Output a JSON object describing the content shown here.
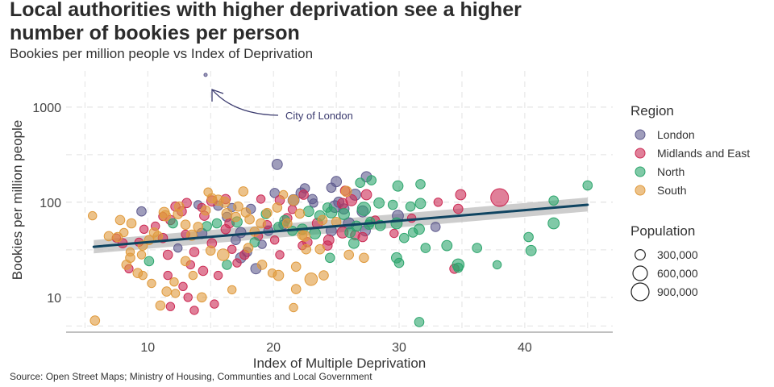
{
  "title": "Local authorities with higher deprivation see a higher number of bookies per person",
  "subtitle": "Bookies per million people vs Index of Deprivation",
  "caption": "Source: Open Street Maps; Ministry of Housing, Communties and Local Government",
  "colors": {
    "London": "#5f5b8e",
    "Midlands and East": "#cc2c55",
    "North": "#2ca56c",
    "South": "#e09a3c",
    "trend": "#0f4461",
    "band": "#bcbcbc",
    "annotation": "#3a3a6e",
    "grid": "#e2e2e2",
    "axis": "#9a9a9a"
  },
  "chart_data": {
    "type": "scatter",
    "xlabel": "Index of Multiple Deprivation",
    "ylabel": "Bookies per million people",
    "xscale": "linear",
    "yscale": "log",
    "xlim": [
      3.5,
      47
    ],
    "ylim": [
      4.3,
      2400
    ],
    "xticks": [
      10,
      20,
      30,
      40
    ],
    "xtick_labels": [
      "10",
      "20",
      "30",
      "40"
    ],
    "yticks": [
      10,
      100,
      1000
    ],
    "ytick_labels": [
      "10",
      "100",
      "1000"
    ],
    "grid": true,
    "legend_position": "right",
    "legend": {
      "color_title": "Region",
      "regions": [
        "London",
        "Midlands and East",
        "North",
        "South"
      ],
      "size_title": "Population",
      "sizes": [
        300000,
        600000,
        900000
      ],
      "size_labels": [
        "300,000",
        "600,000",
        "900,000"
      ]
    },
    "annotation": {
      "text": "City of London",
      "x": 14.6,
      "y": 2180
    },
    "trend": {
      "x": [
        5.7,
        45.0
      ],
      "y": [
        34,
        94
      ],
      "band_low": [
        29,
        80
      ],
      "band_high": [
        40,
        112
      ]
    },
    "series": [
      {
        "name": "London",
        "points": [
          [
            14.6,
            2180,
            9000
          ],
          [
            20.3,
            250,
            300000
          ],
          [
            27.4,
            185,
            300000
          ],
          [
            25.0,
            165,
            300000
          ],
          [
            24.6,
            142,
            250000
          ],
          [
            22.5,
            140,
            250000
          ],
          [
            20.1,
            125,
            250000
          ],
          [
            22.2,
            125,
            300000
          ],
          [
            23.1,
            108,
            250000
          ],
          [
            21.6,
            105,
            350000
          ],
          [
            25.2,
            100,
            300000
          ],
          [
            24.9,
            90,
            400000
          ],
          [
            25.6,
            85,
            300000
          ],
          [
            27.1,
            80,
            350000
          ],
          [
            26.5,
            120,
            350000
          ],
          [
            29.9,
            72,
            350000
          ],
          [
            9.5,
            80,
            250000
          ],
          [
            14.0,
            94,
            200000
          ],
          [
            15.6,
            92,
            250000
          ],
          [
            16.7,
            88,
            200000
          ],
          [
            18.2,
            85,
            250000
          ],
          [
            26.0,
            60,
            350000
          ],
          [
            19.6,
            50,
            250000
          ],
          [
            24.6,
            50,
            300000
          ],
          [
            27.3,
            50,
            300000
          ],
          [
            16.3,
            70,
            250000
          ],
          [
            17.4,
            48,
            300000
          ],
          [
            20.8,
            58,
            250000
          ],
          [
            14.3,
            47,
            300000
          ],
          [
            17.0,
            40,
            250000
          ],
          [
            19.1,
            36,
            200000
          ],
          [
            12.4,
            33,
            200000
          ],
          [
            17.9,
            30,
            250000
          ],
          [
            17.4,
            26,
            300000
          ],
          [
            18.6,
            20,
            300000
          ],
          [
            32.9,
            55,
            250000
          ],
          [
            23.2,
            98,
            200000
          ]
        ]
      },
      {
        "name": "Midlands and East",
        "points": [
          [
            38.0,
            112,
            900000
          ],
          [
            34.9,
            120,
            300000
          ],
          [
            34.7,
            85,
            250000
          ],
          [
            34.4,
            20,
            250000
          ],
          [
            27.4,
            120,
            300000
          ],
          [
            26.2,
            105,
            350000
          ],
          [
            25.5,
            97,
            300000
          ],
          [
            25.7,
            132,
            250000
          ],
          [
            22.4,
            120,
            250000
          ],
          [
            20.5,
            105,
            250000
          ],
          [
            19.0,
            108,
            200000
          ],
          [
            16.2,
            108,
            250000
          ],
          [
            15.1,
            103,
            300000
          ],
          [
            13.1,
            98,
            250000
          ],
          [
            12.2,
            90,
            250000
          ],
          [
            12.7,
            80,
            250000
          ],
          [
            14.5,
            72,
            250000
          ],
          [
            16.5,
            60,
            250000
          ],
          [
            19.5,
            58,
            200000
          ],
          [
            21.1,
            68,
            250000
          ],
          [
            23.5,
            60,
            300000
          ],
          [
            25.5,
            48,
            350000
          ],
          [
            24.4,
            40,
            300000
          ],
          [
            22.7,
            38,
            250000
          ],
          [
            20.5,
            28,
            200000
          ],
          [
            17.7,
            28,
            250000
          ],
          [
            13.7,
            30,
            250000
          ],
          [
            11.6,
            28,
            250000
          ],
          [
            13.4,
            22,
            200000
          ],
          [
            14.4,
            19,
            250000
          ],
          [
            11.6,
            17,
            200000
          ],
          [
            12.8,
            13,
            200000
          ],
          [
            13.2,
            10,
            200000
          ],
          [
            13.7,
            7.3,
            200000
          ],
          [
            15.3,
            8.5,
            200000
          ],
          [
            11.8,
            8,
            200000
          ],
          [
            11.2,
            42,
            250000
          ],
          [
            9.3,
            38,
            200000
          ],
          [
            8.0,
            37,
            250000
          ],
          [
            10.6,
            56,
            200000
          ],
          [
            9.7,
            52,
            200000
          ],
          [
            11.8,
            65,
            250000
          ],
          [
            11.2,
            71,
            200000
          ],
          [
            16.7,
            32,
            200000
          ],
          [
            20.1,
            40,
            200000
          ],
          [
            26.5,
            45,
            250000
          ],
          [
            24.3,
            35,
            250000
          ],
          [
            27.1,
            43,
            250000
          ],
          [
            18.8,
            44,
            200000
          ],
          [
            15.1,
            37,
            250000
          ],
          [
            16.2,
            52,
            250000
          ],
          [
            13.0,
            46,
            200000
          ],
          [
            8.5,
            20,
            200000
          ],
          [
            7.5,
            42,
            200000
          ],
          [
            14.3,
            88,
            200000
          ],
          [
            31.0,
            68,
            200000
          ],
          [
            33.1,
            100,
            200000
          ],
          [
            28.1,
            65,
            200000
          ],
          [
            29.6,
            47,
            200000
          ],
          [
            21.5,
            84,
            200000
          ],
          [
            17.1,
            23,
            200000
          ],
          [
            15.6,
            17,
            200000
          ],
          [
            22.3,
            35,
            200000
          ]
        ]
      },
      {
        "name": "North",
        "points": [
          [
            45.0,
            150,
            250000
          ],
          [
            42.3,
            104,
            250000
          ],
          [
            42.3,
            60,
            350000
          ],
          [
            40.3,
            43,
            250000
          ],
          [
            40.5,
            31,
            300000
          ],
          [
            37.8,
            22,
            200000
          ],
          [
            36.2,
            33,
            250000
          ],
          [
            34.7,
            22,
            400000
          ],
          [
            33.8,
            35,
            300000
          ],
          [
            32.1,
            33,
            250000
          ],
          [
            31.6,
            52,
            300000
          ],
          [
            30.4,
            42,
            250000
          ],
          [
            31.1,
            48,
            250000
          ],
          [
            31.7,
            97,
            300000
          ],
          [
            30.9,
            90,
            250000
          ],
          [
            31.7,
            155,
            250000
          ],
          [
            29.9,
            148,
            300000
          ],
          [
            29.5,
            94,
            250000
          ],
          [
            29.8,
            60,
            350000
          ],
          [
            29.8,
            26,
            300000
          ],
          [
            30.0,
            23,
            250000
          ],
          [
            28.4,
            98,
            300000
          ],
          [
            28.5,
            57,
            300000
          ],
          [
            27.6,
            58,
            250000
          ],
          [
            27.2,
            85,
            500000
          ],
          [
            27.8,
            170,
            250000
          ],
          [
            26.9,
            160,
            250000
          ],
          [
            25.6,
            75,
            350000
          ],
          [
            24.6,
            78,
            350000
          ],
          [
            24.3,
            88,
            250000
          ],
          [
            26.1,
            48,
            300000
          ],
          [
            26.6,
            56,
            300000
          ],
          [
            26.4,
            37,
            300000
          ],
          [
            23.7,
            72,
            300000
          ],
          [
            23.3,
            47,
            350000
          ],
          [
            22.3,
            52,
            300000
          ],
          [
            20.9,
            64,
            300000
          ],
          [
            20.4,
            55,
            250000
          ],
          [
            19.4,
            75,
            250000
          ],
          [
            18.5,
            38,
            250000
          ],
          [
            17.1,
            62,
            300000
          ],
          [
            14.7,
            56,
            250000
          ],
          [
            12.0,
            60,
            250000
          ],
          [
            10.1,
            24,
            250000
          ],
          [
            16.3,
            22,
            250000
          ],
          [
            15.5,
            60,
            250000
          ],
          [
            22.8,
            80,
            300000
          ],
          [
            24.5,
            26,
            250000
          ],
          [
            31.6,
            5.5,
            250000
          ],
          [
            34.7,
            20.5,
            250000
          ],
          [
            27.7,
            62,
            250000
          ],
          [
            21.5,
            50,
            250000
          ]
        ]
      },
      {
        "name": "South",
        "points": [
          [
            5.8,
            5.7,
            250000
          ],
          [
            5.6,
            72,
            200000
          ],
          [
            6.9,
            44,
            250000
          ],
          [
            7.6,
            43,
            250000
          ],
          [
            7.8,
            65,
            250000
          ],
          [
            8.1,
            48,
            200000
          ],
          [
            8.7,
            60,
            250000
          ],
          [
            8.6,
            26,
            250000
          ],
          [
            8.3,
            22,
            250000
          ],
          [
            9.2,
            18,
            250000
          ],
          [
            9.6,
            17,
            200000
          ],
          [
            9.6,
            35,
            250000
          ],
          [
            10.1,
            40,
            250000
          ],
          [
            10.8,
            44,
            250000
          ],
          [
            10.5,
            48,
            250000
          ],
          [
            11.4,
            72,
            300000
          ],
          [
            11.3,
            78,
            300000
          ],
          [
            12.4,
            75,
            250000
          ],
          [
            12.5,
            90,
            250000
          ],
          [
            13.0,
            58,
            250000
          ],
          [
            13.5,
            45,
            300000
          ],
          [
            14.0,
            55,
            250000
          ],
          [
            14.6,
            82,
            250000
          ],
          [
            15.1,
            110,
            250000
          ],
          [
            14.8,
            128,
            200000
          ],
          [
            16.1,
            100,
            300000
          ],
          [
            16.3,
            76,
            300000
          ],
          [
            17.0,
            70,
            250000
          ],
          [
            17.2,
            90,
            250000
          ],
          [
            17.8,
            78,
            250000
          ],
          [
            18.1,
            66,
            250000
          ],
          [
            19.0,
            60,
            250000
          ],
          [
            19.5,
            77,
            250000
          ],
          [
            20.3,
            88,
            250000
          ],
          [
            20.8,
            120,
            200000
          ],
          [
            21.1,
            60,
            250000
          ],
          [
            22.1,
            76,
            250000
          ],
          [
            22.5,
            44,
            300000
          ],
          [
            23.0,
            15.5,
            450000
          ],
          [
            22.6,
            32,
            250000
          ],
          [
            21.8,
            21,
            250000
          ],
          [
            21.8,
            12.2,
            250000
          ],
          [
            21.6,
            7.8,
            200000
          ],
          [
            19.9,
            18,
            200000
          ],
          [
            16.7,
            12.0,
            200000
          ],
          [
            14.3,
            10.0,
            250000
          ],
          [
            12.2,
            11.0,
            200000
          ],
          [
            11.5,
            11.5,
            250000
          ],
          [
            11.0,
            8.2,
            250000
          ],
          [
            10.3,
            14,
            200000
          ],
          [
            13.0,
            24,
            250000
          ],
          [
            12.1,
            14.5,
            200000
          ],
          [
            15.0,
            31,
            250000
          ],
          [
            16.0,
            28,
            400000
          ],
          [
            18.0,
            33,
            250000
          ],
          [
            19.1,
            22,
            250000
          ],
          [
            23.7,
            32,
            250000
          ],
          [
            24.0,
            17,
            250000
          ],
          [
            25.0,
            62,
            250000
          ],
          [
            26.0,
            28,
            250000
          ],
          [
            27.2,
            26,
            250000
          ],
          [
            21.6,
            105,
            300000
          ],
          [
            17.6,
            130,
            250000
          ],
          [
            15.6,
            105,
            300000
          ],
          [
            18.5,
            49,
            250000
          ],
          [
            20.4,
            17,
            300000
          ],
          [
            22.3,
            45,
            250000
          ],
          [
            23.9,
            65,
            250000
          ],
          [
            9.5,
            28,
            200000
          ],
          [
            8.6,
            30,
            200000
          ],
          [
            13.6,
            17,
            200000
          ],
          [
            25.8,
            130,
            300000
          ]
        ]
      }
    ]
  }
}
